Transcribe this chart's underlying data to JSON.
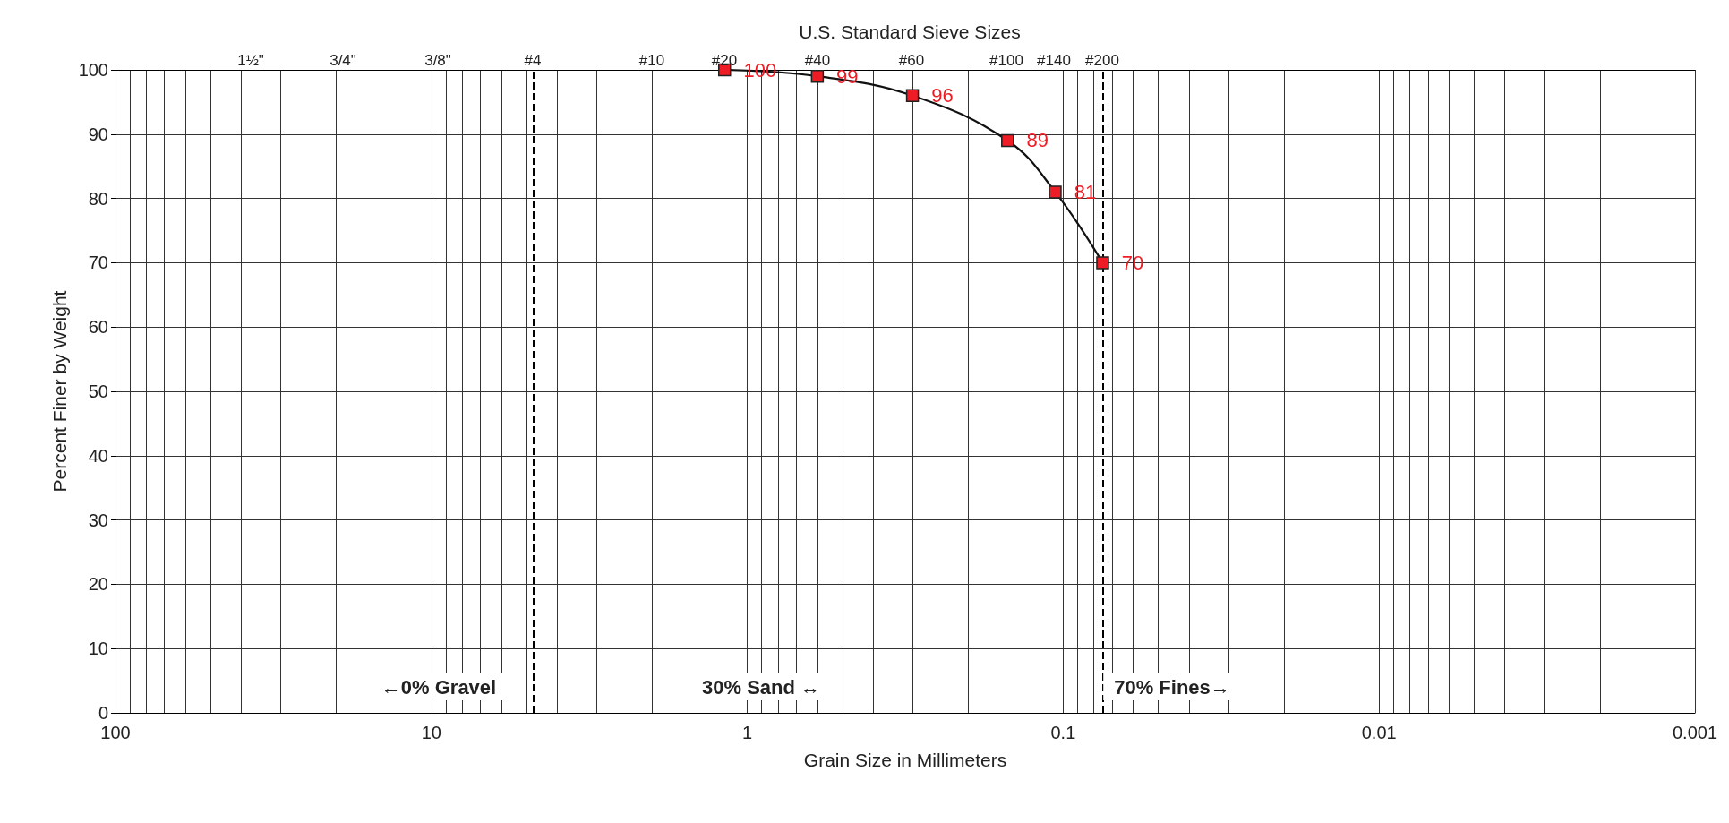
{
  "chart_data": {
    "type": "line",
    "x2label": "U.S. Standard Sieve Sizes",
    "xlabel": "Grain Size in Millimeters",
    "ylabel": "Percent Finer by Weight",
    "x": [
      1.18,
      0.6,
      0.3,
      0.15,
      0.106,
      0.075
    ],
    "series": [
      {
        "color": "#ee1c24",
        "values": [
          100,
          99,
          96,
          89,
          81,
          70
        ]
      }
    ],
    "data_labels": true,
    "marker": "square",
    "line_style": "solid",
    "log": "x",
    "xlim": [
      100,
      0.001
    ],
    "xticks": [
      100,
      10,
      1,
      0.1,
      0.01,
      0.001
    ],
    "ylim": [
      0,
      100
    ],
    "yticks": [
      0,
      10,
      20,
      30,
      40,
      50,
      60,
      70,
      80,
      90,
      100
    ],
    "grid": true,
    "ref_lines": [
      {
        "axis": "x",
        "value": 4.75,
        "color": "#000000",
        "line_style": "dashed"
      },
      {
        "axis": "x",
        "value": 0.075,
        "color": "#000000",
        "line_style": "dashed"
      }
    ],
    "annotations": [
      "←0% Gravel",
      "30% Sand ↔",
      "70% Fines→",
      "1½\"",
      "3/4\"",
      "3/8\"",
      "#4",
      "#10",
      "#20",
      "#40",
      "#60",
      "#100",
      "#140",
      "#200"
    ]
  }
}
